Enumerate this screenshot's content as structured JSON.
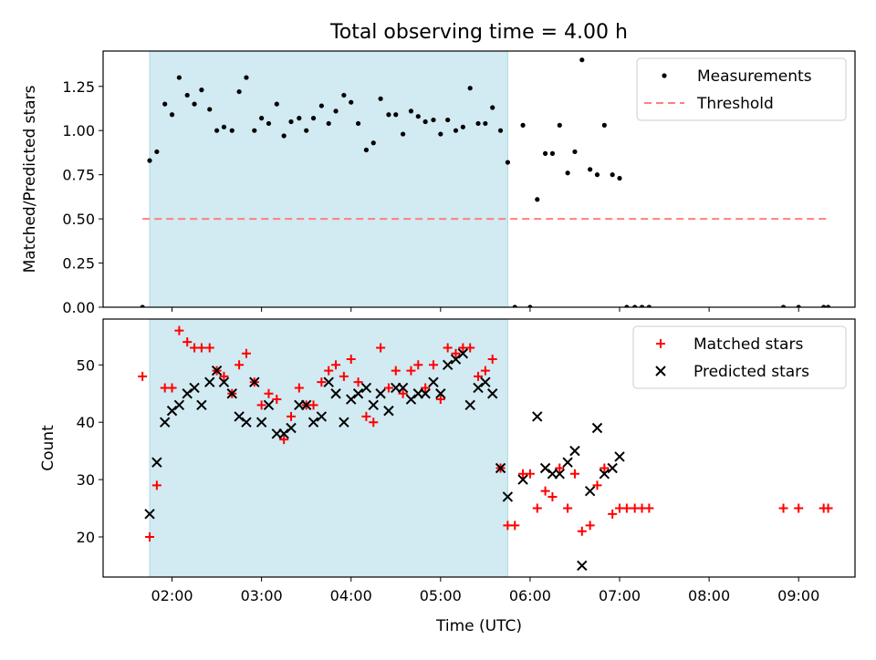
{
  "title": "Total observing time = 4.00 h",
  "chart_data": [
    {
      "type": "scatter",
      "ylabel": "Matched/Predicted stars",
      "xlabel": "",
      "x_unit": "hours UTC",
      "xlim": [
        1.23,
        9.63
      ],
      "ylim": [
        0,
        1.45
      ],
      "yticks": [
        0,
        0.25,
        0.5,
        0.75,
        1.0,
        1.25
      ],
      "ytick_labels": [
        "0.00",
        "0.25",
        "0.50",
        "0.75",
        "1.00",
        "1.25"
      ],
      "shaded_span": [
        1.75,
        5.75
      ],
      "threshold": {
        "name": "Threshold",
        "y": 0.5,
        "x": [
          1.67,
          9.33
        ],
        "color": "#ff7f7f"
      },
      "legend": {
        "position": "top-right",
        "entries": [
          "Measurements",
          "Threshold"
        ]
      },
      "series": [
        {
          "name": "Measurements",
          "color": "#000000",
          "points": [
            [
              1.67,
              0.0
            ],
            [
              1.75,
              0.83
            ],
            [
              1.83,
              0.88
            ],
            [
              1.92,
              1.15
            ],
            [
              2.0,
              1.09
            ],
            [
              2.08,
              1.3
            ],
            [
              2.17,
              1.2
            ],
            [
              2.25,
              1.15
            ],
            [
              2.33,
              1.23
            ],
            [
              2.42,
              1.12
            ],
            [
              2.5,
              1.0
            ],
            [
              2.58,
              1.02
            ],
            [
              2.67,
              1.0
            ],
            [
              2.75,
              1.22
            ],
            [
              2.83,
              1.3
            ],
            [
              2.92,
              1.0
            ],
            [
              3.0,
              1.07
            ],
            [
              3.08,
              1.04
            ],
            [
              3.17,
              1.15
            ],
            [
              3.25,
              0.97
            ],
            [
              3.33,
              1.05
            ],
            [
              3.42,
              1.07
            ],
            [
              3.5,
              1.0
            ],
            [
              3.58,
              1.07
            ],
            [
              3.67,
              1.14
            ],
            [
              3.75,
              1.04
            ],
            [
              3.83,
              1.11
            ],
            [
              3.92,
              1.2
            ],
            [
              4.0,
              1.16
            ],
            [
              4.08,
              1.04
            ],
            [
              4.17,
              0.89
            ],
            [
              4.25,
              0.93
            ],
            [
              4.33,
              1.18
            ],
            [
              4.42,
              1.09
            ],
            [
              4.5,
              1.09
            ],
            [
              4.58,
              0.98
            ],
            [
              4.67,
              1.11
            ],
            [
              4.75,
              1.08
            ],
            [
              4.83,
              1.05
            ],
            [
              4.92,
              1.06
            ],
            [
              5.0,
              0.98
            ],
            [
              5.08,
              1.06
            ],
            [
              5.17,
              1.0
            ],
            [
              5.25,
              1.02
            ],
            [
              5.33,
              1.24
            ],
            [
              5.42,
              1.04
            ],
            [
              5.5,
              1.04
            ],
            [
              5.58,
              1.13
            ],
            [
              5.67,
              1.0
            ],
            [
              5.75,
              0.82
            ],
            [
              5.83,
              0.0
            ],
            [
              5.92,
              1.03
            ],
            [
              6.0,
              0.0
            ],
            [
              6.08,
              0.61
            ],
            [
              6.17,
              0.87
            ],
            [
              6.25,
              0.87
            ],
            [
              6.33,
              1.03
            ],
            [
              6.42,
              0.76
            ],
            [
              6.5,
              0.88
            ],
            [
              6.58,
              1.4
            ],
            [
              6.67,
              0.78
            ],
            [
              6.75,
              0.75
            ],
            [
              6.83,
              1.03
            ],
            [
              6.92,
              0.75
            ],
            [
              7.0,
              0.73
            ],
            [
              7.08,
              0.0
            ],
            [
              7.17,
              0.0
            ],
            [
              7.25,
              0.0
            ],
            [
              7.33,
              0.0
            ],
            [
              8.83,
              0.0
            ],
            [
              9.0,
              0.0
            ],
            [
              9.28,
              0.0
            ],
            [
              9.33,
              0.0
            ]
          ]
        }
      ]
    },
    {
      "type": "scatter",
      "ylabel": "Count",
      "xlabel": "Time (UTC)",
      "xlim": [
        1.23,
        9.63
      ],
      "ylim": [
        13,
        58
      ],
      "yticks": [
        20,
        30,
        40,
        50
      ],
      "ytick_labels": [
        "20",
        "30",
        "40",
        "50"
      ],
      "xticks": [
        2,
        3,
        4,
        5,
        6,
        7,
        8,
        9
      ],
      "xtick_labels": [
        "02:00",
        "03:00",
        "04:00",
        "05:00",
        "06:00",
        "07:00",
        "08:00",
        "09:00"
      ],
      "shaded_span": [
        1.75,
        5.75
      ],
      "legend": {
        "position": "top-right",
        "entries": [
          "Matched stars",
          "Predicted stars"
        ]
      },
      "series": [
        {
          "name": "Matched stars",
          "marker": "plus",
          "color": "#ff0000",
          "points": [
            [
              1.67,
              48
            ],
            [
              1.75,
              20
            ],
            [
              1.83,
              29
            ],
            [
              1.92,
              46
            ],
            [
              2.0,
              46
            ],
            [
              2.08,
              56
            ],
            [
              2.17,
              54
            ],
            [
              2.25,
              53
            ],
            [
              2.33,
              53
            ],
            [
              2.42,
              53
            ],
            [
              2.5,
              49
            ],
            [
              2.58,
              48
            ],
            [
              2.67,
              45
            ],
            [
              2.75,
              50
            ],
            [
              2.83,
              52
            ],
            [
              2.92,
              47
            ],
            [
              3.0,
              43
            ],
            [
              3.08,
              45
            ],
            [
              3.17,
              44
            ],
            [
              3.25,
              37
            ],
            [
              3.33,
              41
            ],
            [
              3.42,
              46
            ],
            [
              3.5,
              43
            ],
            [
              3.58,
              43
            ],
            [
              3.67,
              47
            ],
            [
              3.75,
              49
            ],
            [
              3.83,
              50
            ],
            [
              3.92,
              48
            ],
            [
              4.0,
              51
            ],
            [
              4.08,
              47
            ],
            [
              4.17,
              41
            ],
            [
              4.25,
              40
            ],
            [
              4.33,
              53
            ],
            [
              4.42,
              46
            ],
            [
              4.5,
              49
            ],
            [
              4.58,
              45
            ],
            [
              4.67,
              49
            ],
            [
              4.75,
              50
            ],
            [
              4.83,
              46
            ],
            [
              4.92,
              50
            ],
            [
              5.0,
              44
            ],
            [
              5.08,
              53
            ],
            [
              5.17,
              52
            ],
            [
              5.25,
              53
            ],
            [
              5.33,
              53
            ],
            [
              5.42,
              48
            ],
            [
              5.5,
              49
            ],
            [
              5.58,
              51
            ],
            [
              5.67,
              32
            ],
            [
              5.75,
              22
            ],
            [
              5.83,
              22
            ],
            [
              5.92,
              31
            ],
            [
              6.0,
              31
            ],
            [
              6.08,
              25
            ],
            [
              6.17,
              28
            ],
            [
              6.25,
              27
            ],
            [
              6.33,
              32
            ],
            [
              6.42,
              25
            ],
            [
              6.5,
              31
            ],
            [
              6.58,
              21
            ],
            [
              6.67,
              22
            ],
            [
              6.75,
              29
            ],
            [
              6.83,
              32
            ],
            [
              6.92,
              24
            ],
            [
              7.0,
              25
            ],
            [
              7.08,
              25
            ],
            [
              7.17,
              25
            ],
            [
              7.25,
              25
            ],
            [
              7.33,
              25
            ],
            [
              8.83,
              25
            ],
            [
              9.0,
              25
            ],
            [
              9.28,
              25
            ],
            [
              9.33,
              25
            ]
          ]
        },
        {
          "name": "Predicted stars",
          "marker": "x",
          "color": "#000000",
          "points": [
            [
              1.75,
              24
            ],
            [
              1.83,
              33
            ],
            [
              1.92,
              40
            ],
            [
              2.0,
              42
            ],
            [
              2.08,
              43
            ],
            [
              2.17,
              45
            ],
            [
              2.25,
              46
            ],
            [
              2.33,
              43
            ],
            [
              2.42,
              47
            ],
            [
              2.5,
              49
            ],
            [
              2.58,
              47
            ],
            [
              2.67,
              45
            ],
            [
              2.75,
              41
            ],
            [
              2.83,
              40
            ],
            [
              2.92,
              47
            ],
            [
              3.0,
              40
            ],
            [
              3.08,
              43
            ],
            [
              3.17,
              38
            ],
            [
              3.25,
              38
            ],
            [
              3.33,
              39
            ],
            [
              3.42,
              43
            ],
            [
              3.5,
              43
            ],
            [
              3.58,
              40
            ],
            [
              3.67,
              41
            ],
            [
              3.75,
              47
            ],
            [
              3.83,
              45
            ],
            [
              3.92,
              40
            ],
            [
              4.0,
              44
            ],
            [
              4.08,
              45
            ],
            [
              4.17,
              46
            ],
            [
              4.25,
              43
            ],
            [
              4.33,
              45
            ],
            [
              4.42,
              42
            ],
            [
              4.5,
              46
            ],
            [
              4.58,
              46
            ],
            [
              4.67,
              44
            ],
            [
              4.75,
              45
            ],
            [
              4.83,
              45
            ],
            [
              4.92,
              47
            ],
            [
              5.0,
              45
            ],
            [
              5.08,
              50
            ],
            [
              5.17,
              51
            ],
            [
              5.25,
              52
            ],
            [
              5.33,
              43
            ],
            [
              5.42,
              46
            ],
            [
              5.5,
              47
            ],
            [
              5.58,
              45
            ],
            [
              5.67,
              32
            ],
            [
              5.75,
              27
            ],
            [
              5.92,
              30
            ],
            [
              6.08,
              41
            ],
            [
              6.17,
              32
            ],
            [
              6.25,
              31
            ],
            [
              6.33,
              31
            ],
            [
              6.42,
              33
            ],
            [
              6.5,
              35
            ],
            [
              6.58,
              15
            ],
            [
              6.67,
              28
            ],
            [
              6.75,
              39
            ],
            [
              6.83,
              31
            ],
            [
              6.92,
              32
            ],
            [
              7.0,
              34
            ]
          ]
        }
      ]
    }
  ]
}
